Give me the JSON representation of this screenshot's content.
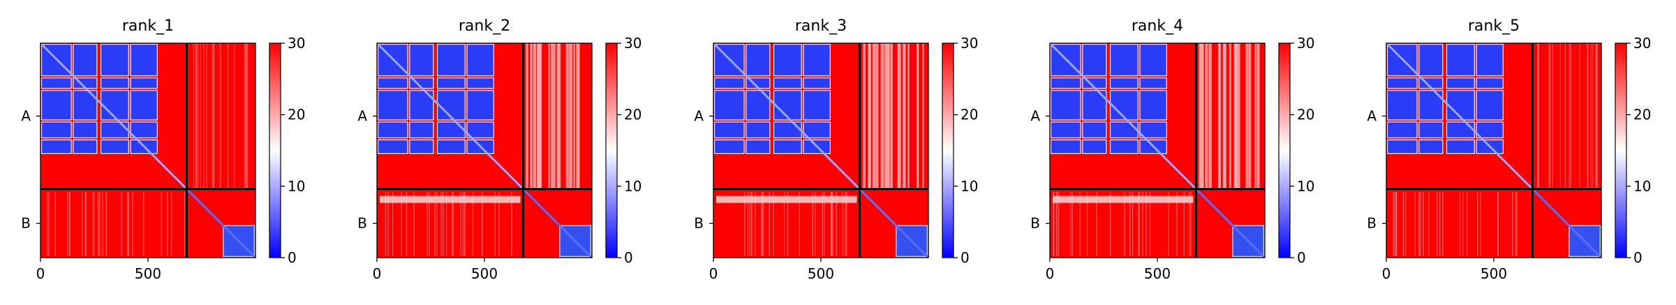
{
  "chart_data": [
    {
      "type": "heatmap",
      "title": "rank_1",
      "chains": [
        {
          "label": "A",
          "length": 680
        },
        {
          "label": "B",
          "length": 320
        }
      ],
      "x_ticks": [
        0,
        500
      ],
      "xlim": [
        0,
        1000
      ],
      "colorbar": {
        "min": 0,
        "max": 30,
        "ticks": [
          0,
          10,
          20,
          30
        ],
        "colormap": "bwr"
      },
      "cross_chain_pattern": "uniform"
    },
    {
      "type": "heatmap",
      "title": "rank_2",
      "chains": [
        {
          "label": "A",
          "length": 680
        },
        {
          "label": "B",
          "length": 320
        }
      ],
      "x_ticks": [
        0,
        500
      ],
      "xlim": [
        0,
        1000
      ],
      "colorbar": {
        "min": 0,
        "max": 30,
        "ticks": [
          0,
          10,
          20,
          30
        ],
        "colormap": "bwr"
      },
      "cross_chain_pattern": "striped"
    },
    {
      "type": "heatmap",
      "title": "rank_3",
      "chains": [
        {
          "label": "A",
          "length": 680
        },
        {
          "label": "B",
          "length": 320
        }
      ],
      "x_ticks": [
        0,
        500
      ],
      "xlim": [
        0,
        1000
      ],
      "colorbar": {
        "min": 0,
        "max": 30,
        "ticks": [
          0,
          10,
          20,
          30
        ],
        "colormap": "bwr"
      },
      "cross_chain_pattern": "striped"
    },
    {
      "type": "heatmap",
      "title": "rank_4",
      "chains": [
        {
          "label": "A",
          "length": 680
        },
        {
          "label": "B",
          "length": 320
        }
      ],
      "x_ticks": [
        0,
        500
      ],
      "xlim": [
        0,
        1000
      ],
      "colorbar": {
        "min": 0,
        "max": 30,
        "ticks": [
          0,
          10,
          20,
          30
        ],
        "colormap": "bwr"
      },
      "cross_chain_pattern": "striped"
    },
    {
      "type": "heatmap",
      "title": "rank_5",
      "chains": [
        {
          "label": "A",
          "length": 680
        },
        {
          "label": "B",
          "length": 320
        }
      ],
      "x_ticks": [
        0,
        500
      ],
      "xlim": [
        0,
        1000
      ],
      "colorbar": {
        "min": 0,
        "max": 30,
        "ticks": [
          0,
          10,
          20,
          30
        ],
        "colormap": "bwr"
      },
      "cross_chain_pattern": "uniform"
    }
  ],
  "colors": {
    "low": "#0000ff",
    "mid": "#ffffff",
    "high": "#ff0000"
  }
}
